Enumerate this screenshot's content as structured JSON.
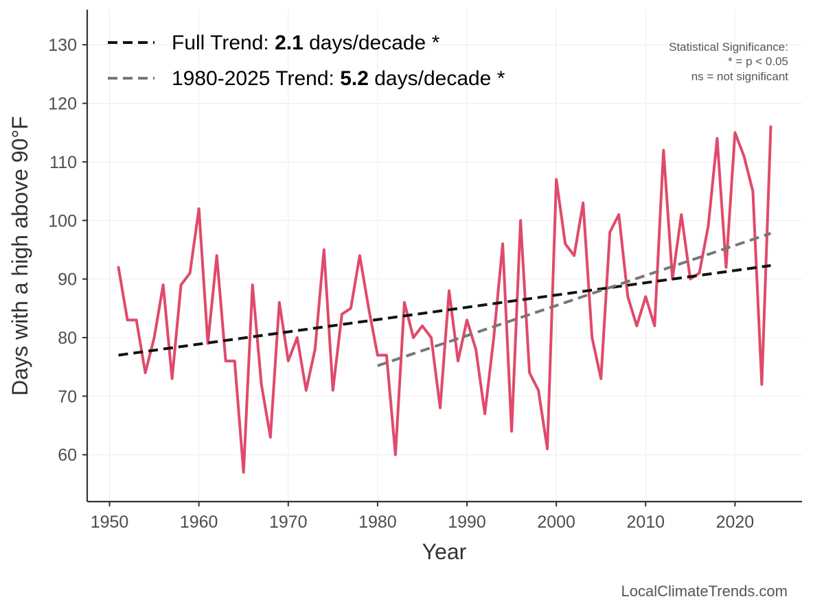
{
  "chart_data": {
    "type": "line",
    "xlabel": "Year",
    "ylabel": "Days with a high above 90°F",
    "xlim": [
      1947.5,
      2027.5
    ],
    "ylim": [
      52,
      136
    ],
    "xticks": [
      1950,
      1960,
      1970,
      1980,
      1990,
      2000,
      2010,
      2020
    ],
    "yticks": [
      60,
      70,
      80,
      90,
      100,
      110,
      120,
      130
    ],
    "grid": true,
    "legend_position": "top-left",
    "x": [
      1951,
      1952,
      1953,
      1954,
      1955,
      1956,
      1957,
      1958,
      1959,
      1960,
      1961,
      1962,
      1963,
      1964,
      1965,
      1966,
      1967,
      1968,
      1969,
      1970,
      1971,
      1972,
      1973,
      1974,
      1975,
      1976,
      1977,
      1978,
      1979,
      1980,
      1981,
      1982,
      1983,
      1984,
      1985,
      1986,
      1987,
      1988,
      1989,
      1990,
      1991,
      1992,
      1993,
      1994,
      1995,
      1996,
      1997,
      1998,
      1999,
      2000,
      2001,
      2002,
      2003,
      2004,
      2005,
      2006,
      2007,
      2008,
      2009,
      2010,
      2011,
      2012,
      2013,
      2014,
      2015,
      2016,
      2017,
      2018,
      2019,
      2020,
      2021,
      2022,
      2023,
      2024
    ],
    "series": [
      {
        "values": [
          92,
          83,
          83,
          74,
          80,
          89,
          73,
          89,
          91,
          102,
          79,
          94,
          76,
          76,
          57,
          89,
          72,
          63,
          86,
          76,
          80,
          71,
          78,
          95,
          71,
          84,
          85,
          94,
          85,
          77,
          77,
          60,
          86,
          80,
          82,
          80,
          68,
          88,
          76,
          83,
          78,
          67,
          80,
          96,
          64,
          100,
          74,
          71,
          61,
          107,
          96,
          94,
          103,
          80,
          73,
          98,
          101,
          87,
          82,
          87,
          82,
          112,
          90,
          101,
          90,
          91,
          99,
          114,
          92,
          115,
          111,
          105,
          72,
          116
        ],
        "color": "#e04a6a"
      }
    ],
    "trends": [
      {
        "label": "Full Trend: ",
        "value": "2.1",
        "suffix": " days/decade *",
        "x": [
          1951,
          2024
        ],
        "y": [
          77.0,
          92.3
        ],
        "color": "#111111"
      },
      {
        "label": "1980-2025 Trend: ",
        "value": "5.2",
        "suffix": " days/decade *",
        "x": [
          1980,
          2024
        ],
        "y": [
          75.2,
          97.8
        ],
        "color": "#777777"
      }
    ],
    "annotations": {
      "significance": [
        "Statistical Significance:",
        "* = p < 0.05",
        "ns = not significant"
      ],
      "credit": "LocalClimateTrends.com"
    }
  }
}
